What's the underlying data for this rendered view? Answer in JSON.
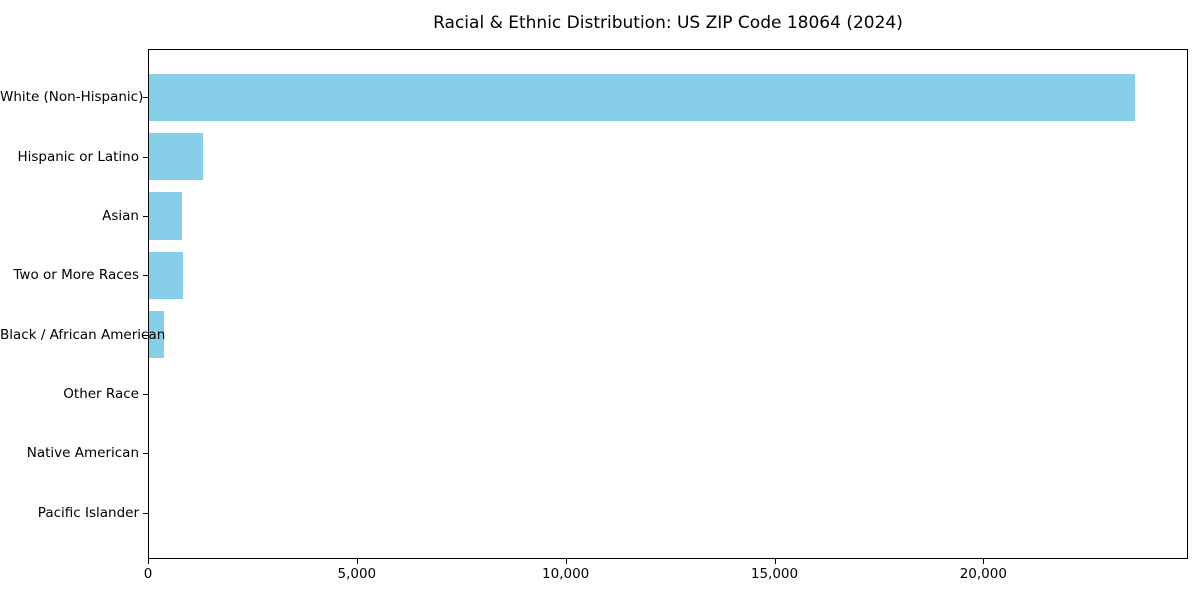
{
  "chart_data": {
    "type": "bar",
    "orientation": "horizontal",
    "title": "Racial & Ethnic Distribution: US ZIP Code 18064 (2024)",
    "xlabel": "",
    "ylabel": "",
    "categories": [
      "White (Non-Hispanic)",
      "Hispanic or Latino",
      "Asian",
      "Two or More Races",
      "Black / African American",
      "Other Race",
      "Native American",
      "Pacific Islander"
    ],
    "values": [
      23650,
      1290,
      785,
      805,
      360,
      0,
      0,
      0
    ],
    "xlim": [
      0,
      24900
    ],
    "xticks": [
      0,
      5000,
      10000,
      15000,
      20000
    ],
    "xtick_labels": [
      "0",
      "5,000",
      "10,000",
      "15,000",
      "20,000"
    ],
    "bar_color": "#87CEEB",
    "axis_color": "#000000",
    "background_color": "#ffffff",
    "grid": false,
    "legend": null
  }
}
